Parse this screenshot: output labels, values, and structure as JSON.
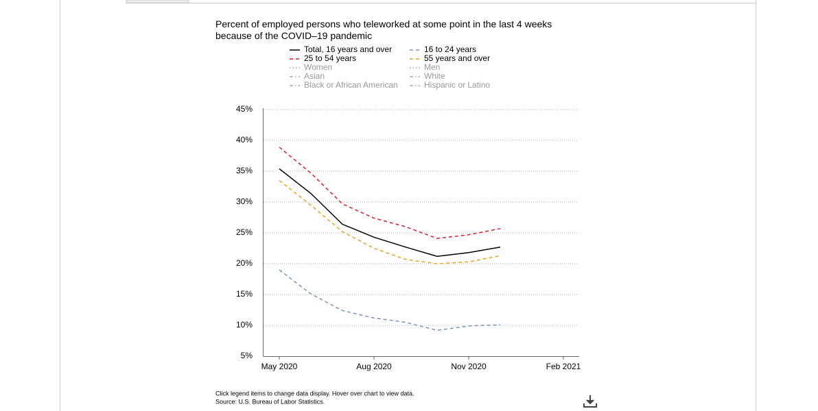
{
  "chart_data": {
    "type": "line",
    "title": [
      "Percent of employed persons who teleworked at some point in the last 4 weeks",
      "because of the COVID–19 pandemic"
    ],
    "x": [
      "2020-05",
      "2020-06",
      "2020-07",
      "2020-08",
      "2020-09",
      "2020-10",
      "2020-11",
      "2020-12"
    ],
    "series": [
      {
        "name": "Total, 16 years and over",
        "color": "#000000",
        "dash": "solid",
        "visible": true,
        "values": [
          35.4,
          31.4,
          26.4,
          24.3,
          22.7,
          21.2,
          21.8,
          22.7
        ]
      },
      {
        "name": "16 to 24 years",
        "color": "#7d93b9",
        "dash": "dashed",
        "visible": true,
        "values": [
          19.0,
          15.1,
          12.4,
          11.2,
          10.5,
          9.2,
          9.9,
          10.1
        ]
      },
      {
        "name": "25 to 54 years",
        "color": "#d6202f",
        "dash": "dashed",
        "visible": true,
        "values": [
          38.9,
          34.7,
          29.7,
          27.4,
          26.0,
          24.1,
          24.7,
          25.7
        ]
      },
      {
        "name": "55 years and over",
        "color": "#e6a521",
        "dash": "dashed",
        "visible": true,
        "values": [
          33.5,
          29.5,
          25.2,
          22.5,
          20.7,
          20.0,
          20.3,
          21.3
        ]
      },
      {
        "name": "Women",
        "color": "#aaaaaa",
        "dash": "dotted",
        "visible": false
      },
      {
        "name": "Men",
        "color": "#aaaaaa",
        "dash": "dotted",
        "visible": false
      },
      {
        "name": "Asian",
        "color": "#aaaaaa",
        "dash": "dashdot",
        "visible": false
      },
      {
        "name": "White",
        "color": "#aaaaaa",
        "dash": "dashdot",
        "visible": false
      },
      {
        "name": "Black or African American",
        "color": "#aaaaaa",
        "dash": "dashdot",
        "visible": false
      },
      {
        "name": "Hispanic or Latino",
        "color": "#aaaaaa",
        "dash": "dashdot",
        "visible": false
      }
    ],
    "ylim": [
      5,
      45
    ],
    "yticks": [
      {
        "value": 5,
        "label": "5%"
      },
      {
        "value": 10,
        "label": "10%"
      },
      {
        "value": 15,
        "label": "15%"
      },
      {
        "value": 20,
        "label": "20%"
      },
      {
        "value": 25,
        "label": "25%"
      },
      {
        "value": 30,
        "label": "30%"
      },
      {
        "value": 35,
        "label": "35%"
      },
      {
        "value": 40,
        "label": "40%"
      },
      {
        "value": 45,
        "label": "45%"
      }
    ],
    "xticks": [
      {
        "value": "2020-05",
        "label": "May 2020"
      },
      {
        "value": "2020-08",
        "label": "Aug 2020"
      },
      {
        "value": "2020-11",
        "label": "Nov 2020"
      },
      {
        "value": "2021-02",
        "label": "Feb 2021"
      }
    ],
    "grid": true,
    "notes": [
      "Click legend items to change data display. Hover over chart to view data.",
      "Source: U.S. Bureau of Labor Statistics."
    ]
  }
}
